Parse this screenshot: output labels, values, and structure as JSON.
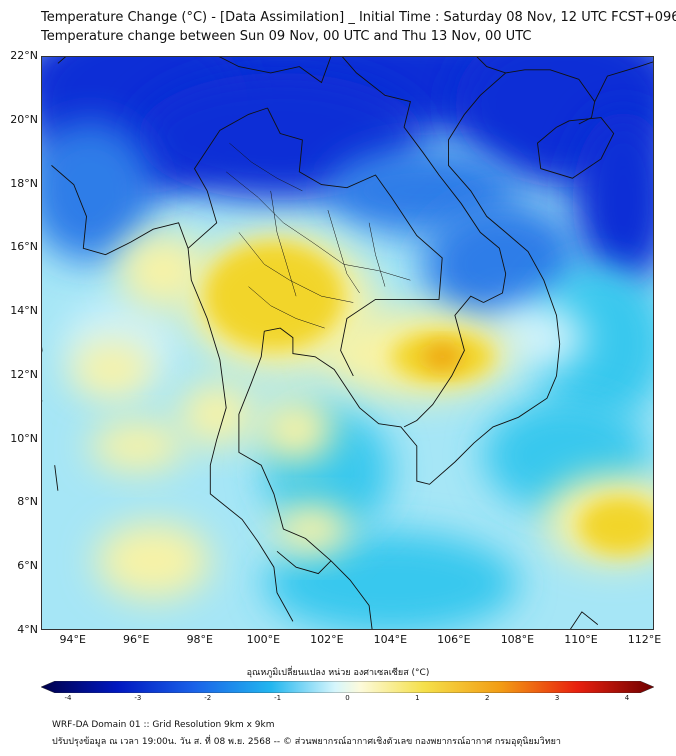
{
  "header": {
    "title_line1": "Temperature Change (°C) - [Data Assimilation] _ Initial Time : Saturday 08 Nov, 12 UTC FCST+096",
    "title_line2": "Temperature change between Sun 09 Nov, 00 UTC and Thu 13 Nov, 00 UTC"
  },
  "map": {
    "lat_labels": [
      "22°N",
      "20°N",
      "18°N",
      "16°N",
      "14°N",
      "12°N",
      "10°N",
      "8°N",
      "6°N",
      "4°N"
    ],
    "lon_labels": [
      "94°E",
      "96°E",
      "98°E",
      "100°E",
      "102°E",
      "104°E",
      "106°E",
      "108°E",
      "110°E",
      "112°E"
    ],
    "lat_range": [
      4,
      22
    ],
    "lon_range": [
      93,
      112.3
    ],
    "colors": {
      "strong_cold": "#0a2fd6",
      "cold": "#2f7de8",
      "mild_cold": "#39c8ee",
      "neutral": "#cdf2fb",
      "mild_warm": "#f8f3a6",
      "warm": "#f2d52a",
      "hot": "#eea418"
    }
  },
  "colorbar": {
    "title": "อุณหภูมิเปลี่ยนแปลง หน่วย องศาเซลเซียส (°C)",
    "ticks": [
      "-4",
      "-3",
      "-2",
      "-1",
      "0",
      "1",
      "2",
      "3",
      "4"
    ],
    "range": [
      -4,
      4
    ]
  },
  "footer": {
    "line1": "WRF-DA Domain 01 :: Grid Resolution 9km x 9km",
    "line2": "ปรับปรุงข้อมูล ณ เวลา 19:00น. วัน ส. ที่ 08 พ.ย. 2568 -- © ส่วนพยากรณ์อากาศเชิงตัวเลข กองพยากรณ์อากาศ กรมอุตุนิยมวิทยา"
  }
}
